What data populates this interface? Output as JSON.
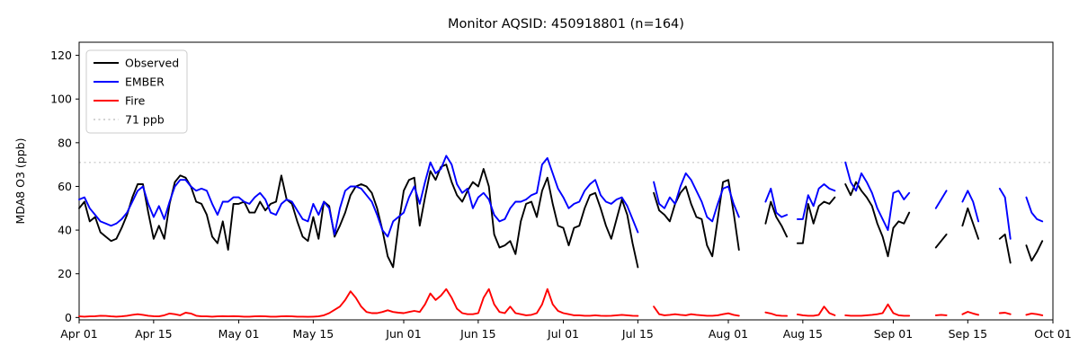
{
  "title": "Monitor AQSID: 450918801 (n=164)",
  "y_axis": {
    "label": "MDA8 O3 (ppb)",
    "ticks": [
      0,
      20,
      40,
      60,
      80,
      100,
      120
    ]
  },
  "x_axis": {
    "ticks": [
      {
        "label": "Apr 01",
        "day": 0
      },
      {
        "label": "Apr 15",
        "day": 14
      },
      {
        "label": "May 01",
        "day": 30
      },
      {
        "label": "May 15",
        "day": 44
      },
      {
        "label": "Jun 01",
        "day": 61
      },
      {
        "label": "Jun 15",
        "day": 75
      },
      {
        "label": "Jul 01",
        "day": 91
      },
      {
        "label": "Jul 15",
        "day": 105
      },
      {
        "label": "Aug 01",
        "day": 122
      },
      {
        "label": "Aug 15",
        "day": 136
      },
      {
        "label": "Sep 01",
        "day": 153
      },
      {
        "label": "Sep 15",
        "day": 167
      },
      {
        "label": "Oct 01",
        "day": 183
      }
    ]
  },
  "threshold": {
    "value": 71,
    "label": "71 ppb",
    "color": "#d3d3d3",
    "style": "dotted"
  },
  "legend": {
    "position": "upper left",
    "items": [
      {
        "label": "Observed",
        "color": "#000000",
        "style": "solid"
      },
      {
        "label": "EMBER",
        "color": "#0000ff",
        "style": "solid"
      },
      {
        "label": "Fire",
        "color": "#ff0000",
        "style": "solid"
      },
      {
        "label": "71 ppb",
        "color": "#d3d3d3",
        "style": "dotted"
      }
    ]
  },
  "chart_data": {
    "type": "line",
    "title": "Monitor AQSID: 450918801 (n=164)",
    "ylabel": "MDA8 O3 (ppb)",
    "xlabel": "",
    "x_start": "Apr 01",
    "x_end": "Oct 01",
    "x_unit": "daily values; array index = days since Apr 01; null = missing day (gap in line)",
    "n_points": 164,
    "ylim": [
      -1.1,
      126
    ],
    "xlim_days": [
      0,
      183
    ],
    "grid": false,
    "threshold_line_ppb": 71,
    "series": [
      {
        "name": "Observed",
        "color": "#000000",
        "values": [
          50,
          53,
          44,
          46,
          39,
          37,
          35,
          36,
          41,
          47,
          55,
          61,
          61,
          48,
          36,
          42,
          36,
          52,
          62,
          65,
          64,
          60,
          53,
          52,
          47,
          37,
          34,
          44,
          31,
          52,
          52,
          53,
          48,
          48,
          53,
          49,
          52,
          53,
          65,
          54,
          52,
          44,
          37,
          35,
          46,
          36,
          53,
          51,
          37,
          42,
          48,
          56,
          60,
          61,
          60,
          57,
          50,
          40,
          28,
          23,
          42,
          58,
          63,
          64,
          42,
          55,
          67,
          63,
          69,
          70,
          62,
          56,
          53,
          58,
          62,
          60,
          68,
          60,
          38,
          32,
          33,
          35,
          29,
          44,
          52,
          53,
          46,
          58,
          64,
          52,
          42,
          41,
          33,
          41,
          42,
          50,
          56,
          57,
          50,
          42,
          36,
          45,
          54,
          47,
          34,
          23,
          null,
          null,
          57,
          49,
          47,
          44,
          52,
          57,
          60,
          52,
          46,
          45,
          33,
          28,
          45,
          62,
          63,
          48,
          31,
          null,
          null,
          null,
          null,
          43,
          53,
          46,
          42,
          37,
          null,
          34,
          34,
          52,
          43,
          51,
          53,
          52,
          55,
          null,
          61,
          56,
          62,
          58,
          55,
          51,
          43,
          37,
          28,
          41,
          44,
          43,
          48,
          null,
          null,
          null,
          null,
          32,
          35,
          38,
          null,
          null,
          42,
          50,
          43,
          36,
          null,
          null,
          null,
          36,
          38,
          25,
          null,
          null,
          33,
          26,
          30,
          35,
          null
        ]
      },
      {
        "name": "EMBER",
        "color": "#0000ff",
        "values": [
          54,
          55,
          50,
          47,
          44,
          43,
          42,
          43,
          45,
          48,
          53,
          58,
          60,
          52,
          46,
          51,
          45,
          53,
          60,
          63,
          63,
          60,
          58,
          59,
          58,
          52,
          47,
          53,
          53,
          55,
          55,
          53,
          52,
          55,
          57,
          54,
          48,
          47,
          52,
          54,
          53,
          49,
          45,
          44,
          52,
          47,
          53,
          50,
          38,
          50,
          58,
          60,
          60,
          59,
          56,
          53,
          47,
          40,
          37,
          44,
          46,
          48,
          55,
          60,
          52,
          62,
          71,
          66,
          68,
          74,
          70,
          61,
          57,
          59,
          50,
          55,
          57,
          54,
          47,
          44,
          45,
          50,
          53,
          53,
          54,
          56,
          57,
          70,
          73,
          66,
          59,
          55,
          50,
          52,
          53,
          58,
          61,
          63,
          56,
          53,
          52,
          54,
          55,
          51,
          45,
          39,
          null,
          null,
          62,
          52,
          50,
          55,
          52,
          60,
          66,
          63,
          58,
          53,
          46,
          44,
          52,
          59,
          60,
          52,
          46,
          null,
          null,
          null,
          null,
          53,
          59,
          48,
          46,
          47,
          null,
          45,
          45,
          56,
          51,
          59,
          61,
          59,
          58,
          null,
          71,
          62,
          58,
          66,
          62,
          57,
          50,
          45,
          40,
          57,
          58,
          54,
          57,
          null,
          null,
          null,
          null,
          50,
          54,
          58,
          null,
          null,
          53,
          58,
          53,
          44,
          null,
          null,
          null,
          59,
          55,
          36,
          null,
          null,
          55,
          48,
          45,
          44,
          null
        ]
      },
      {
        "name": "Fire",
        "color": "#ff0000",
        "values": [
          0.5,
          0.4,
          0.5,
          0.6,
          0.8,
          0.7,
          0.5,
          0.4,
          0.5,
          0.8,
          1.2,
          1.5,
          1.2,
          0.8,
          0.6,
          0.5,
          1.0,
          1.8,
          1.5,
          1.0,
          2.2,
          1.8,
          0.8,
          0.5,
          0.5,
          0.4,
          0.5,
          0.6,
          0.5,
          0.6,
          0.5,
          0.4,
          0.4,
          0.5,
          0.6,
          0.5,
          0.4,
          0.4,
          0.5,
          0.6,
          0.5,
          0.4,
          0.4,
          0.3,
          0.4,
          0.5,
          1.0,
          2.0,
          3.5,
          5.0,
          8.0,
          12.0,
          9.0,
          5.0,
          2.5,
          2.0,
          2.0,
          2.5,
          3.3,
          2.5,
          2.2,
          2.0,
          2.5,
          3.0,
          2.5,
          6.0,
          11.0,
          8.0,
          10.0,
          13.0,
          9.0,
          4.0,
          2.0,
          1.5,
          1.5,
          2.0,
          9.0,
          13.0,
          6.0,
          2.5,
          2.0,
          5.0,
          2.0,
          1.5,
          1.0,
          1.2,
          2.0,
          6.0,
          13.0,
          6.0,
          3.0,
          2.0,
          1.5,
          1.0,
          1.0,
          0.8,
          0.8,
          1.0,
          0.8,
          0.7,
          0.8,
          1.0,
          1.2,
          1.0,
          0.8,
          0.7,
          null,
          null,
          5.0,
          1.5,
          1.0,
          1.2,
          1.5,
          1.2,
          1.0,
          1.5,
          1.2,
          1.0,
          0.8,
          0.8,
          1.0,
          1.5,
          1.9,
          1.2,
          0.8,
          null,
          null,
          null,
          null,
          2.3,
          1.8,
          1.0,
          0.8,
          0.7,
          null,
          1.4,
          1.0,
          0.8,
          0.8,
          1.2,
          5.0,
          2.0,
          1.0,
          null,
          1.0,
          0.8,
          0.8,
          0.8,
          1.0,
          1.2,
          1.5,
          2.0,
          6.0,
          2.0,
          1.0,
          0.8,
          0.8,
          null,
          null,
          null,
          null,
          1.0,
          1.2,
          1.0,
          null,
          null,
          1.5,
          2.6,
          1.8,
          1.2,
          null,
          null,
          null,
          2.0,
          2.2,
          1.5,
          null,
          null,
          1.2,
          1.8,
          1.5,
          1.0,
          null
        ]
      }
    ],
    "legend_position": "upper left"
  }
}
